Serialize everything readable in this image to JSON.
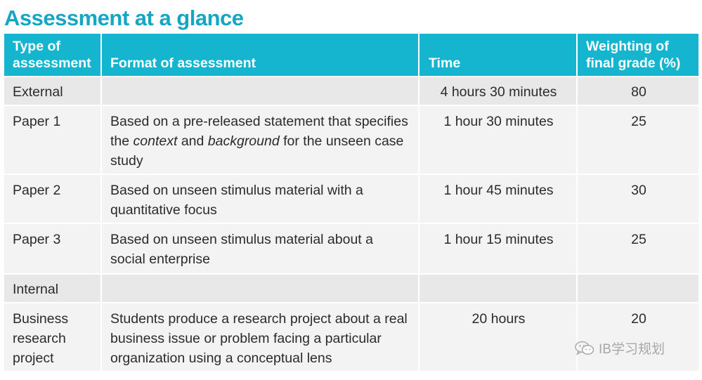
{
  "title": "Assessment at a glance",
  "table": {
    "headers": [
      "Type of\nassessment",
      "Format of assessment",
      "Time",
      "Weighting of\nfinal grade (%)"
    ],
    "rows": [
      {
        "type": "External",
        "format": "",
        "time": "4 hours 30 minutes",
        "weight": "80"
      },
      {
        "type": "Paper 1",
        "format_parts": [
          "Based on a pre-released statement that specifies the ",
          "context",
          " and ",
          "background",
          " for the unseen case study"
        ],
        "time": "1 hour 30 minutes",
        "weight": "25"
      },
      {
        "type": "Paper 2",
        "format": "Based on unseen stimulus material with a quantitative focus",
        "time": "1 hour 45 minutes",
        "weight": "30"
      },
      {
        "type": "Paper 3",
        "format": "Based on unseen stimulus material about a social enterprise",
        "time": "1 hour 15 minutes",
        "weight": "25"
      },
      {
        "type": "Internal",
        "format": "",
        "time": "",
        "weight": ""
      },
      {
        "type": "Business research project",
        "format": "Students produce a research project about a real business issue or problem facing a particular organization using a conceptual lens",
        "time": "20 hours",
        "weight": "20"
      }
    ]
  },
  "watermark": {
    "text": "IB学习规划",
    "icon": "wechat-icon",
    "color": "#9a9a9a"
  },
  "colors": {
    "title": "#15a6c4",
    "header_bg": "#15b4cf",
    "row_shade": "#e8e8e9",
    "row_light": "#f3f3f3"
  }
}
